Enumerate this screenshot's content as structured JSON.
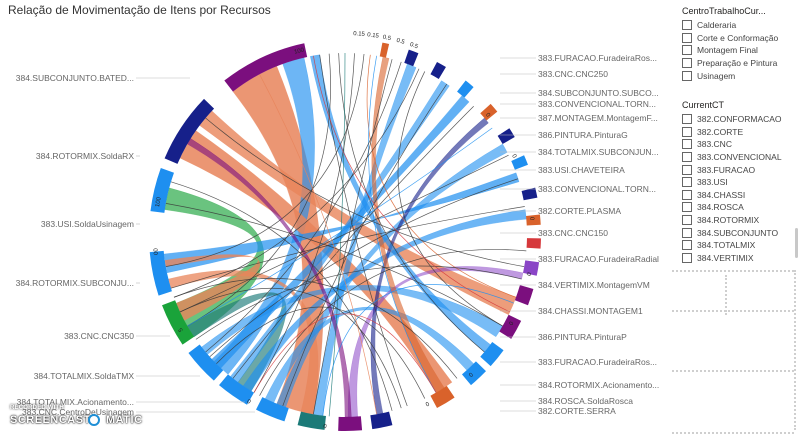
{
  "report": {
    "title": "Relação de Movimentação de Itens por Recursos"
  },
  "chart_data": {
    "type": "chord",
    "left_labels": [
      "384.SUBCONJUNTO.BATED...",
      "384.ROTORMIX.SoldaRX",
      "383.USI.SoldaUsinagem",
      "384.ROTORMIX.SUBCONJU...",
      "383.CNC.CNC350",
      "384.TOTALMIX.SoldaTMX",
      "384.TOTALMIX.Acionamento...",
      "383.CNC.CentroDeUsinagem"
    ],
    "right_labels": [
      "383.FURACAO.FuradeiraRos...",
      "383.CNC.CNC250",
      "384.SUBCONJUNTO.SUBCO...",
      "383.CONVENCIONAL.TORN...",
      "387.MONTAGEM.MontagemF...",
      "386.PINTURA.PinturaG",
      "384.TOTALMIX.SUBCONJUN...",
      "383.USI.CHAVETEIRA",
      "383.CONVENCIONAL.TORN...",
      "382.CORTE.PLASMA",
      "383.CNC.CNC150",
      "383.FURACAO.FuradeiraRadial",
      "384.VERTIMIX.MontagemVM",
      "384.CHASSI.MONTAGEM1",
      "386.PINTURA.PinturaP",
      "383.FURACAO.FuradeiraRos...",
      "384.ROTORMIX.Acionamento...",
      "384.ROSCA.SoldaRosca",
      "382.CORTE.SERRA"
    ],
    "arc_tick_labels": [
      "0.15",
      "0.15",
      "0.5",
      "0.5",
      "0.5",
      "0",
      "0",
      "0",
      "0",
      "0",
      "0",
      "0",
      "0",
      "0",
      "5",
      "00",
      "100",
      "100"
    ],
    "colors": {
      "purple": "#7b0f7e",
      "navy": "#16208a",
      "blue": "#1e8ff0",
      "green": "#1aa33a",
      "teal": "#1b7a78",
      "salmon": "#e8845a",
      "orange": "#d9622b",
      "red": "#d6383b",
      "violet": "#8a45c6",
      "darkblue": "#1c2c8c"
    }
  },
  "slicers": {
    "centro": {
      "title": "CentroTrabalhoCur...",
      "options": [
        "Calderaria",
        "Corte e Conformação",
        "Montagem Final",
        "Preparação e Pintura",
        "Usinagem"
      ]
    },
    "current": {
      "title": "CurrentCT",
      "options": [
        "382.CONFORMACAO",
        "382.CORTE",
        "383.CNC",
        "383.CONVENCIONAL",
        "383.FURACAO",
        "383.USI",
        "384.CHASSI",
        "384.ROSCA",
        "384.ROTORMIX",
        "384.SUBCONJUNTO",
        "384.TOTALMIX",
        "384.VERTIMIX"
      ]
    }
  },
  "watermark": {
    "recorded": "RECORDED WITH",
    "brand_a": "SCREENCAST",
    "brand_b": "MATIC"
  }
}
